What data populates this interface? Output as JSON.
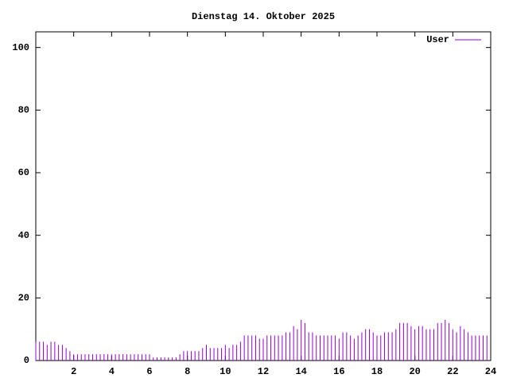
{
  "chart_data": {
    "type": "impulse",
    "title": "Dienstag 14. Oktober 2025",
    "x": [
      0,
      0.2,
      0.4,
      0.6,
      0.8,
      1,
      1.2,
      1.4,
      1.6,
      1.8,
      2,
      2.2,
      2.4,
      2.6,
      2.8,
      3,
      3.2,
      3.4,
      3.6,
      3.8,
      4,
      4.2,
      4.4,
      4.6,
      4.8,
      5,
      5.2,
      5.4,
      5.6,
      5.8,
      6,
      6.2,
      6.4,
      6.6,
      6.8,
      7,
      7.2,
      7.4,
      7.6,
      7.8,
      8,
      8.2,
      8.4,
      8.6,
      8.8,
      9,
      9.2,
      9.4,
      9.6,
      9.8,
      10,
      10.2,
      10.4,
      10.6,
      10.8,
      11,
      11.2,
      11.4,
      11.6,
      11.8,
      12,
      12.2,
      12.4,
      12.6,
      12.8,
      13,
      13.2,
      13.4,
      13.6,
      13.8,
      14,
      14.2,
      14.4,
      14.6,
      14.8,
      15,
      15.2,
      15.4,
      15.6,
      15.8,
      16,
      16.2,
      16.4,
      16.6,
      16.8,
      17,
      17.2,
      17.4,
      17.6,
      17.8,
      18,
      18.2,
      18.4,
      18.6,
      18.8,
      19,
      19.2,
      19.4,
      19.6,
      19.8,
      20,
      20.2,
      20.4,
      20.6,
      20.8,
      21,
      21.2,
      21.4,
      21.6,
      21.8,
      22,
      22.2,
      22.4,
      22.6,
      22.8,
      23,
      23.2,
      23.4,
      23.6,
      23.8
    ],
    "series": [
      {
        "name": "User",
        "color": "#9400d3",
        "values": [
          6,
          6,
          6,
          5,
          6,
          6,
          5,
          5,
          4,
          3,
          2,
          2,
          2,
          2,
          2,
          2,
          2,
          2,
          2,
          2,
          2,
          2,
          2,
          2,
          2,
          2,
          2,
          2,
          2,
          2,
          2,
          1,
          1,
          1,
          1,
          1,
          1,
          1,
          2,
          3,
          3,
          3,
          3,
          3,
          4,
          5,
          4,
          4,
          4,
          4,
          5,
          4,
          5,
          5,
          6,
          8,
          8,
          8,
          8,
          7,
          7,
          8,
          8,
          8,
          8,
          8,
          9,
          9,
          11,
          10,
          13,
          12,
          9,
          9,
          8,
          8,
          8,
          8,
          8,
          8,
          7,
          9,
          9,
          8,
          7,
          8,
          9,
          10,
          10,
          9,
          8,
          8,
          9,
          9,
          9,
          10,
          12,
          12,
          12,
          11,
          10,
          11,
          11,
          10,
          10,
          10,
          12,
          12,
          13,
          12,
          10,
          9,
          11,
          10,
          9,
          8,
          8,
          8,
          8,
          8
        ]
      }
    ],
    "xlim": [
      0,
      24
    ],
    "xticks": [
      2,
      4,
      6,
      8,
      10,
      12,
      14,
      16,
      18,
      20,
      22,
      24
    ],
    "ylim": [
      0,
      105
    ],
    "yticks": [
      0,
      20,
      40,
      60,
      80,
      100
    ],
    "legend": "top-right"
  }
}
